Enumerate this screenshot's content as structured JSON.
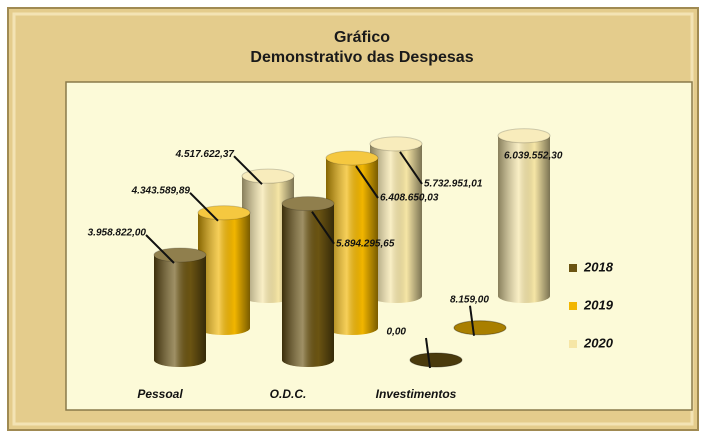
{
  "chart_data": {
    "type": "bar3d",
    "title": "Gráfico",
    "subtitle": "Demonstrativo das Despesas",
    "categories": [
      "Pessoal",
      "O.D.C.",
      "Investimentos"
    ],
    "series": [
      {
        "name": "2018",
        "color": "#6b5412",
        "values": [
          3958822.0,
          5894295.65,
          0.0
        ],
        "value_labels": [
          "3.958.822,00",
          "5.894.295,65",
          "0,00"
        ]
      },
      {
        "name": "2019",
        "color": "#f2b600",
        "values": [
          4343589.89,
          6408650.03,
          8159.0
        ],
        "value_labels": [
          "4.343.589,89",
          "6.408.650,03",
          "8.159,00"
        ]
      },
      {
        "name": "2020",
        "color": "#f6e6a6",
        "values": [
          4517622.37,
          5732951.01,
          6039552.3
        ],
        "value_labels": [
          "4.517.622,37",
          "5.732.951,01",
          "6.039.552,30"
        ]
      }
    ],
    "legend": "right"
  }
}
